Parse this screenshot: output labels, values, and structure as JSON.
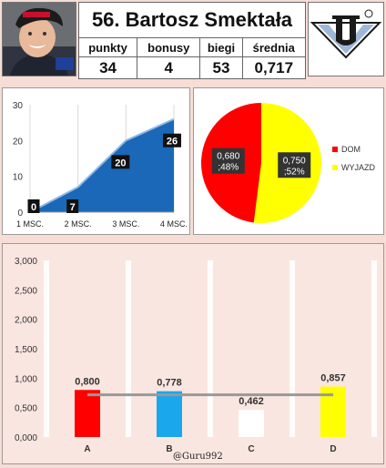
{
  "rider": {
    "title": "56. Bartosz Smektała",
    "columns": [
      {
        "label": "punkty",
        "value": "34"
      },
      {
        "label": "bonusy",
        "value": "4"
      },
      {
        "label": "biegi",
        "value": "53"
      },
      {
        "label": "średnia",
        "value": "0,717"
      }
    ]
  },
  "watermark": "@Guru992",
  "chart_data": [
    {
      "type": "area",
      "categories": [
        "1 MSC.",
        "2 MSC.",
        "3 MSC.",
        "4 MSC."
      ],
      "values": [
        0,
        7,
        20,
        26
      ],
      "value_labels": [
        "0",
        "7",
        "20",
        "26"
      ],
      "y_ticks": [
        "0",
        "10",
        "20",
        "30"
      ],
      "ylim": [
        0,
        30
      ],
      "grid": true,
      "colors": {
        "fill": "#1b68b8",
        "edge": "#8fb8e6"
      }
    },
    {
      "type": "pie",
      "slices": [
        {
          "name": "DOM",
          "value": 0.68,
          "percent": 48,
          "label_line1": "0,680",
          "label_line2": ";48%",
          "color": "#ff0000"
        },
        {
          "name": "WYJAZD",
          "value": 0.75,
          "percent": 52,
          "label_line1": "0,750",
          "label_line2": ";52%",
          "color": "#ffff00"
        }
      ],
      "legend_position": "right"
    },
    {
      "type": "bar",
      "categories": [
        "A",
        "B",
        "C",
        "D"
      ],
      "values": [
        0.8,
        0.778,
        0.462,
        0.857
      ],
      "value_labels": [
        "0,800",
        "0,778",
        "0,462",
        "0,857"
      ],
      "colors": [
        "#ff0000",
        "#1aa7ec",
        "#ffffff",
        "#ffff00"
      ],
      "reference_line": 0.717,
      "y_ticks": [
        "0,000",
        "0,500",
        "1,000",
        "1,500",
        "2,000",
        "2,500",
        "3,000"
      ],
      "ylim": [
        0,
        3
      ],
      "grid": true
    }
  ]
}
